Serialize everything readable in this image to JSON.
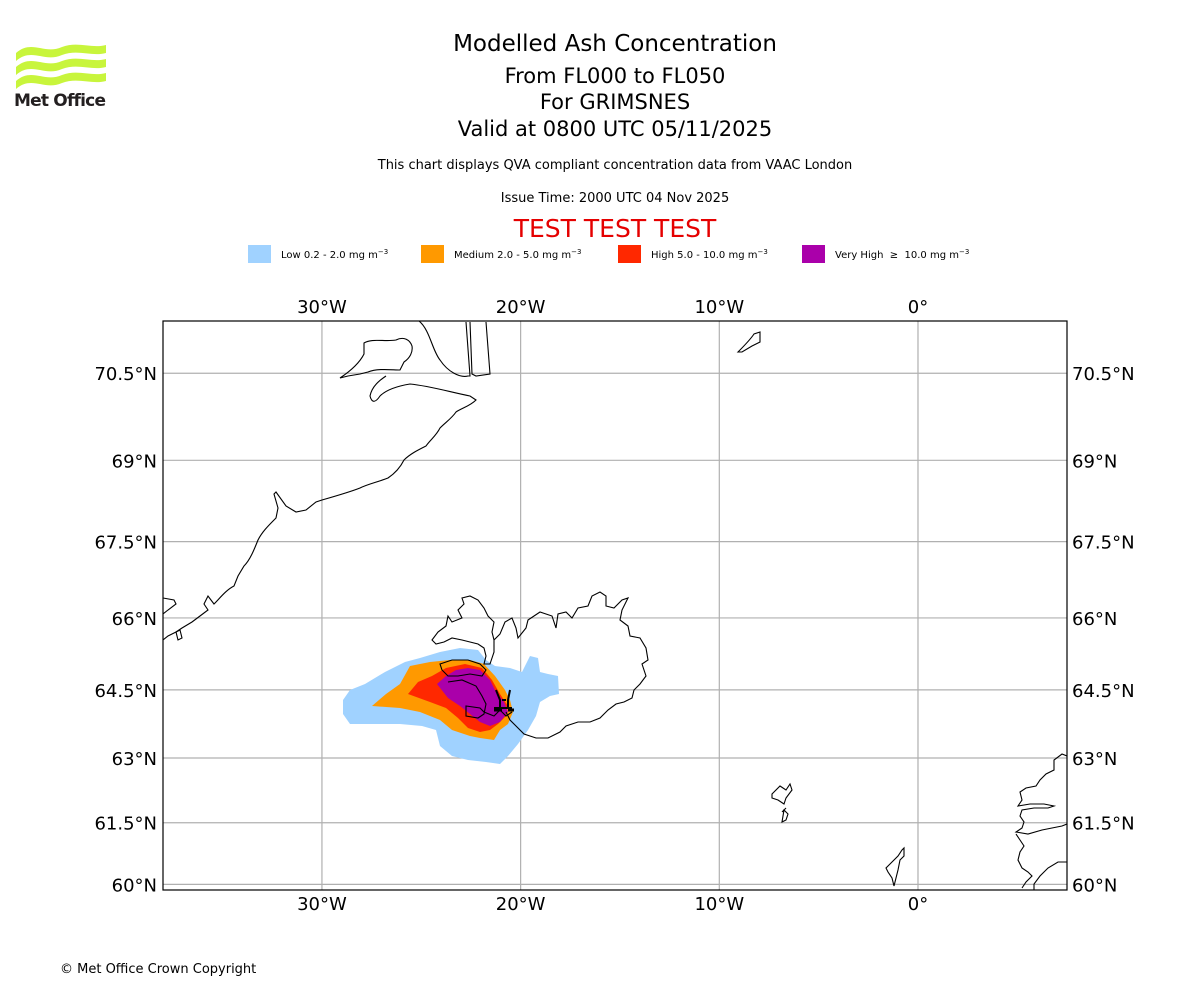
{
  "logo": {
    "text": "Met Office",
    "icon": "met-office-waves-logo",
    "color": "#c8f53c"
  },
  "title": {
    "main": "Modelled Ash Concentration",
    "levels": "From FL000 to FL050",
    "volcano": "For GRIMSNES",
    "valid": "Valid at 0800 UTC 05/11/2025"
  },
  "subtitle": "This chart displays QVA compliant concentration data from VAAC London",
  "issue_time": "Issue Time: 2000 UTC 04 Nov 2025",
  "test_banner": "TEST TEST TEST",
  "legend": [
    {
      "label": "Low 0.2 - 2.0 mg m",
      "unit_exp": "−3",
      "color": "#a0d2ff"
    },
    {
      "label": "Medium 2.0 - 5.0 mg m",
      "unit_exp": "−3",
      "color": "#ff9900"
    },
    {
      "label": "High 5.0 - 10.0 mg m",
      "unit_exp": "−3",
      "color": "#ff2800"
    },
    {
      "label": "Very High  ≥  10.0 mg m",
      "unit_exp": "−3",
      "color": "#aa00aa"
    }
  ],
  "map": {
    "lon_range": [
      -38,
      7.5
    ],
    "lat_range": [
      59.86,
      71.35
    ],
    "lon_ticks": [
      {
        "value": -30,
        "label": "30°W"
      },
      {
        "value": -20,
        "label": "20°W"
      },
      {
        "value": -10,
        "label": "10°W"
      },
      {
        "value": 0,
        "label": "0°"
      }
    ],
    "lat_ticks": [
      {
        "value": 70.5,
        "label": "70.5°N"
      },
      {
        "value": 69,
        "label": "69°N"
      },
      {
        "value": 67.5,
        "label": "67.5°N"
      },
      {
        "value": 66,
        "label": "66°N"
      },
      {
        "value": 64.5,
        "label": "64.5°N"
      },
      {
        "value": 63,
        "label": "63°N"
      },
      {
        "value": 61.5,
        "label": "61.5°N"
      },
      {
        "value": 60,
        "label": "60°N"
      }
    ],
    "gridline_color": "#b0b0b0",
    "volcano": {
      "name": "GRIMSNES",
      "lon": -20.8,
      "lat": 64.2,
      "icon": "volcano-symbol"
    }
  },
  "copyright": "© Met Office Crown Copyright"
}
